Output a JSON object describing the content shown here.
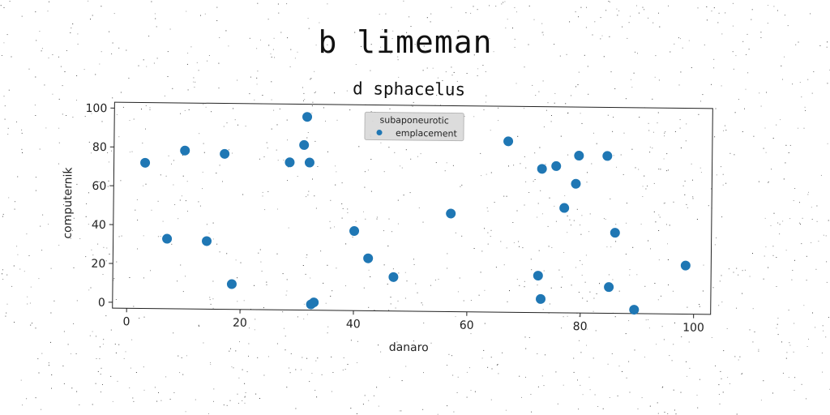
{
  "main_title": "b limeman",
  "chart_data": {
    "type": "scatter",
    "title": "d sphacelus",
    "xlabel": "danaro",
    "ylabel": "computernik",
    "xlim": [
      -2.5,
      103
    ],
    "ylim": [
      -3,
      103
    ],
    "xticks": [
      0,
      20,
      40,
      60,
      80,
      100
    ],
    "yticks": [
      0,
      20,
      40,
      60,
      80,
      100
    ],
    "grid": false,
    "legend": {
      "title": "subaponeurotic",
      "placement": "top-center"
    },
    "series": [
      {
        "name": "emplacement",
        "color": "#1f77b4",
        "x": [
          3,
          7,
          10,
          14,
          17,
          18.5,
          28.5,
          31,
          31.5,
          32,
          32.5,
          33,
          40,
          42.5,
          47,
          57,
          67,
          72.5,
          73,
          73,
          75.5,
          77,
          79,
          79.5,
          84.5,
          85,
          86,
          89.5,
          98.5
        ],
        "y": [
          72,
          33,
          78.5,
          32,
          77,
          10,
          73,
          82,
          96.5,
          73,
          0,
          1,
          38,
          24,
          14.5,
          47.5,
          85,
          16,
          4,
          71,
          72.5,
          51,
          63.5,
          78,
          78,
          10.5,
          38.5,
          -1,
          22
        ]
      }
    ]
  }
}
